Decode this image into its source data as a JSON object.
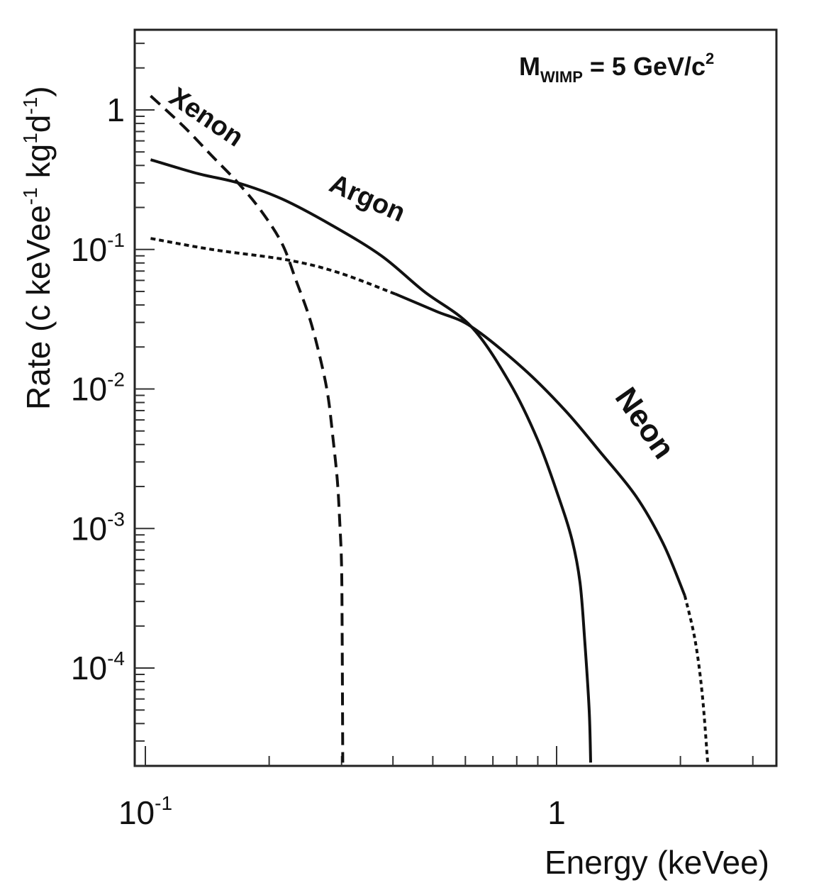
{
  "chart_data": {
    "type": "line",
    "title": "",
    "annotation": {
      "main": "M",
      "sub": "WIMP",
      "rest": " = 5 GeV/c",
      "sup": "2"
    },
    "xlabel": "Energy (keVee)",
    "ylabel": "Rate (c keVee⁻¹ kg⁻¹d⁻¹)",
    "ylabel_parts": {
      "pre": "Rate (c keVee",
      "sup1": "-1",
      "mid": " kg",
      "sup2": "1",
      "mid2": "d",
      "sup3": "-1",
      "post": ")"
    },
    "xscale": "log",
    "yscale": "log",
    "xlim": [
      0.095,
      3.3
    ],
    "ylim": [
      2.2e-05,
      3.5
    ],
    "x_ticks": [
      {
        "value": 0.1,
        "base": "10",
        "exp": "-1"
      },
      {
        "value": 1,
        "base": "1",
        "exp": ""
      }
    ],
    "y_ticks": [
      {
        "value": 1,
        "base": "1",
        "exp": ""
      },
      {
        "value": 0.1,
        "base": "10",
        "exp": "-1"
      },
      {
        "value": 0.01,
        "base": "10",
        "exp": "-2"
      },
      {
        "value": 0.001,
        "base": "10",
        "exp": "-3"
      },
      {
        "value": 0.0001,
        "base": "10",
        "exp": "-4"
      }
    ],
    "grid": false,
    "legend": "inline labels on curves",
    "series": [
      {
        "name": "Xenon",
        "style": "dashed",
        "x": [
          0.103,
          0.124,
          0.145,
          0.168,
          0.191,
          0.215,
          0.232,
          0.251,
          0.267,
          0.278,
          0.286,
          0.293,
          0.297,
          0.3,
          0.301,
          0.302
        ],
        "y": [
          1.26,
          0.76,
          0.47,
          0.3,
          0.19,
          0.11,
          0.061,
          0.032,
          0.016,
          0.0089,
          0.0044,
          0.0022,
          0.0011,
          0.00054,
          0.00017,
          2.1e-05
        ]
      },
      {
        "name": "Argon",
        "style": "solid",
        "x": [
          0.103,
          0.134,
          0.168,
          0.215,
          0.283,
          0.375,
          0.476,
          0.62,
          0.77,
          0.9,
          1.01,
          1.09,
          1.14,
          1.17,
          1.2,
          1.21
        ],
        "y": [
          0.44,
          0.35,
          0.3,
          0.23,
          0.15,
          0.09,
          0.05,
          0.028,
          0.011,
          0.0043,
          0.0017,
          0.00083,
          0.00041,
          0.00016,
          5e-05,
          2.1e-05
        ]
      },
      {
        "name": "Neon",
        "style": "solid-then-dotted",
        "x": [
          0.103,
          0.145,
          0.222,
          0.296,
          0.405,
          0.51,
          0.62,
          0.83,
          1.05,
          1.28,
          1.56,
          1.82,
          2.05,
          2.17,
          2.26,
          2.33
        ],
        "y": [
          0.12,
          0.1,
          0.084,
          0.068,
          0.048,
          0.036,
          0.028,
          0.014,
          0.007,
          0.0035,
          0.0017,
          0.00077,
          0.00033,
          0.00016,
          6.5e-05,
          2.1e-05
        ]
      }
    ],
    "labels": [
      {
        "text": "Xenon",
        "series": "Xenon"
      },
      {
        "text": "Argon",
        "series": "Argon"
      },
      {
        "text": "Neon",
        "series": "Neon"
      }
    ]
  },
  "colors": {
    "line": "#111111",
    "frame": "#222222",
    "background": "#ffffff"
  }
}
